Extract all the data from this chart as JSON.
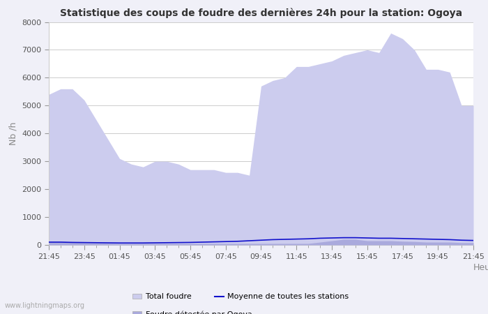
{
  "title": "Statistique des coups de foudre des dernières 24h pour la station: Ogoya",
  "ylabel": "Nb /h",
  "xlabel": "Heure",
  "ylim": [
    0,
    8000
  ],
  "yticks": [
    0,
    1000,
    2000,
    3000,
    4000,
    5000,
    6000,
    7000,
    8000
  ],
  "x_labels": [
    "21:45",
    "23:45",
    "01:45",
    "03:45",
    "05:45",
    "07:45",
    "09:45",
    "11:45",
    "13:45",
    "15:45",
    "17:45",
    "19:45",
    "21:45"
  ],
  "background_color": "#f0f0f8",
  "plot_bg_color": "#ffffff",
  "grid_color": "#cccccc",
  "fill_total_color": "#ccccee",
  "fill_ogoya_color": "#aaaadd",
  "line_moyenne_color": "#1111cc",
  "watermark": "www.lightningmaps.org",
  "total_foudre": [
    5400,
    5600,
    5600,
    5200,
    4500,
    3800,
    3100,
    2900,
    2800,
    3000,
    3000,
    2900,
    2700,
    2700,
    2700,
    2600,
    2600,
    2500,
    5700,
    5900,
    6000,
    6400,
    6400,
    6500,
    6600,
    6800,
    6900,
    7000,
    6900,
    7600,
    7400,
    7000,
    6300,
    6300,
    6200,
    5000,
    5000
  ],
  "ogoya_foudre": [
    100,
    100,
    100,
    80,
    70,
    60,
    50,
    50,
    50,
    50,
    50,
    50,
    50,
    50,
    50,
    50,
    50,
    50,
    50,
    50,
    50,
    50,
    50,
    100,
    150,
    200,
    200,
    150,
    150,
    150,
    130,
    120,
    100,
    100,
    100,
    80,
    80
  ],
  "moyenne": [
    100,
    100,
    90,
    85,
    80,
    75,
    70,
    70,
    70,
    75,
    80,
    85,
    90,
    100,
    110,
    120,
    130,
    150,
    170,
    190,
    200,
    210,
    220,
    240,
    250,
    260,
    260,
    250,
    240,
    240,
    230,
    220,
    210,
    200,
    190,
    170,
    160
  ]
}
